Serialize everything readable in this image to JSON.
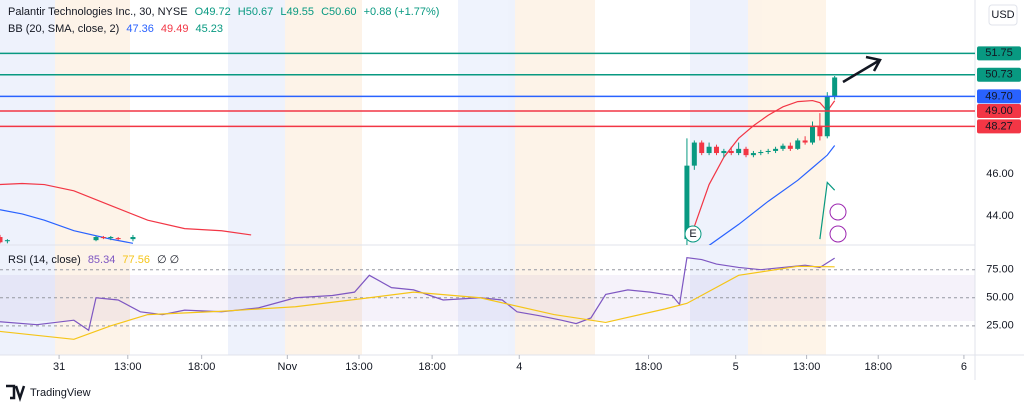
{
  "header": {
    "symbol": "Palantir Technologies Inc., 30, NYSE",
    "ohlc": [
      "O49.72",
      "H50.67",
      "L49.55",
      "C50.60"
    ],
    "change": "+0.88 (+1.77%)",
    "bb_title": "BB (20, SMA, close, 2)",
    "bb_values": [
      "47.36",
      "49.49",
      "45.23"
    ],
    "rsi_title": "RSI (14, close)",
    "rsi_values": [
      "85.34",
      "77.56",
      "∅ ∅"
    ],
    "currency": "USD",
    "brand": "TradingView",
    "earnings_marker": "E"
  },
  "chart_data": [
    {
      "type": "candlestick",
      "xlim": [
        0,
        132
      ],
      "ylim": [
        42.62,
        54.29
      ],
      "up_color": "#089981",
      "down_color": "#f23645",
      "yticks": [
        {
          "value": 44,
          "label": "44.00"
        },
        {
          "value": 46,
          "label": "46.00"
        }
      ],
      "x": [
        0,
        1,
        13,
        14,
        15,
        16,
        18,
        93,
        94,
        95,
        96,
        97,
        98,
        99,
        100,
        101,
        102,
        103,
        104,
        105,
        106,
        107,
        108,
        109,
        110,
        111,
        112,
        113
      ],
      "open": [
        43.0,
        42.8,
        42.85,
        43.0,
        42.95,
        42.95,
        42.9,
        42.9,
        46.4,
        47.5,
        47.0,
        47.3,
        47.0,
        47.1,
        47.0,
        47.2,
        46.9,
        47.0,
        47.05,
        47.1,
        47.2,
        47.35,
        47.2,
        47.6,
        47.5,
        48.3,
        47.8,
        49.72
      ],
      "high": [
        43.1,
        42.9,
        43.05,
        43.05,
        43.05,
        43.0,
        43.1,
        47.7,
        47.6,
        47.6,
        47.5,
        47.4,
        47.2,
        47.3,
        47.5,
        47.3,
        47.1,
        47.15,
        47.2,
        47.3,
        47.45,
        47.5,
        47.7,
        47.8,
        48.5,
        48.9,
        49.9,
        50.67
      ],
      "low": [
        42.7,
        42.7,
        42.8,
        42.9,
        42.85,
        42.85,
        42.8,
        42.6,
        46.2,
        46.9,
        46.9,
        46.9,
        46.8,
        46.9,
        46.9,
        46.8,
        46.8,
        46.9,
        46.95,
        47.0,
        47.1,
        47.1,
        47.15,
        47.4,
        47.4,
        47.6,
        47.7,
        49.55
      ],
      "close": [
        42.75,
        42.85,
        43.0,
        42.95,
        43.0,
        42.9,
        43.0,
        46.4,
        47.5,
        47.0,
        47.3,
        47.0,
        47.1,
        47.0,
        47.2,
        46.9,
        47.0,
        47.05,
        47.1,
        47.2,
        47.35,
        47.2,
        47.6,
        47.5,
        48.3,
        47.8,
        49.7,
        50.6
      ],
      "series": [
        {
          "color": "#f23645",
          "x": [
            0,
            3,
            6,
            10,
            15,
            20,
            25,
            30,
            34
          ],
          "values": [
            45.5,
            45.55,
            45.5,
            45.2,
            44.5,
            43.8,
            43.4,
            43.3,
            43.1
          ]
        },
        {
          "color": "#2962ff",
          "x": [
            0,
            3,
            6,
            10,
            15,
            18
          ],
          "values": [
            44.3,
            44.1,
            43.8,
            43.3,
            42.9,
            42.7
          ]
        },
        {
          "color": "#f23645",
          "x": [
            94,
            96,
            98,
            100,
            102,
            104,
            106,
            108,
            110,
            111,
            112,
            113
          ],
          "values": [
            43.5,
            45.5,
            46.8,
            47.7,
            48.3,
            48.8,
            49.2,
            49.45,
            49.5,
            49.4,
            49.0,
            49.49
          ]
        },
        {
          "color": "#2962ff",
          "x": [
            96,
            100,
            104,
            108,
            110,
            112,
            113
          ],
          "values": [
            42.6,
            43.6,
            44.7,
            45.7,
            46.3,
            46.9,
            47.36
          ]
        },
        {
          "color": "#089981",
          "x": [
            111,
            112,
            113
          ],
          "values": [
            42.9,
            45.6,
            45.23
          ]
        }
      ],
      "levels": [
        {
          "value": 51.75,
          "label": "51.75",
          "color": "#089981"
        },
        {
          "value": 50.73,
          "label": "50.73",
          "color": "#089981"
        },
        {
          "value": 49.7,
          "label": "49.70",
          "color": "#2962ff"
        },
        {
          "value": 49.0,
          "label": "49.00",
          "color": "#f23645"
        },
        {
          "value": 48.27,
          "label": "48.27",
          "color": "#f23645"
        }
      ]
    },
    {
      "type": "line",
      "xlim": [
        0,
        132
      ],
      "ylim": [
        -1,
        97
      ],
      "yticks": [
        {
          "value": 75,
          "label": "75.00"
        },
        {
          "value": 50,
          "label": "50.00"
        },
        {
          "value": 25,
          "label": "25.00"
        }
      ],
      "xticks": [
        {
          "value": 8,
          "label": "31"
        },
        {
          "value": 17.3,
          "label": "13:00"
        },
        {
          "value": 27.3,
          "label": "18:00"
        },
        {
          "value": 38.9,
          "label": "Nov"
        },
        {
          "value": 48.6,
          "label": "13:00"
        },
        {
          "value": 58.5,
          "label": "18:00"
        },
        {
          "value": 70.3,
          "label": "4"
        },
        {
          "value": 87.8,
          "label": "18:00"
        },
        {
          "value": 99.6,
          "label": "5"
        },
        {
          "value": 109.2,
          "label": "13:00"
        },
        {
          "value": 118.9,
          "label": "18:00"
        },
        {
          "value": 130.5,
          "label": "6"
        }
      ],
      "series": [
        {
          "color": "#7e57c2",
          "x": [
            0,
            5,
            10,
            12,
            13,
            16,
            19,
            22,
            25,
            30,
            35,
            40,
            45,
            48,
            50,
            53,
            56,
            60,
            65,
            68,
            70,
            73,
            76,
            78,
            80,
            82,
            85,
            88,
            91,
            92,
            93,
            95,
            97,
            100,
            103,
            106,
            109,
            111,
            113
          ],
          "values": [
            28.6,
            26,
            30,
            21,
            50,
            48,
            37.5,
            35,
            39,
            37.5,
            41,
            50,
            52,
            55,
            70,
            59,
            57,
            48,
            50,
            48,
            37.5,
            34,
            30,
            27,
            32,
            53,
            57,
            55,
            52,
            44,
            85.7,
            84,
            80,
            77,
            75,
            77,
            79,
            77,
            85.34
          ]
        },
        {
          "color": "#f5c518",
          "x": [
            0,
            10,
            15,
            20,
            30,
            40,
            50,
            56,
            65,
            75,
            82,
            90,
            93,
            100,
            108,
            113
          ],
          "values": [
            20,
            13,
            25,
            35,
            38,
            42,
            50,
            55,
            50,
            35,
            28,
            40,
            45,
            70,
            78,
            77.56
          ]
        }
      ]
    }
  ]
}
